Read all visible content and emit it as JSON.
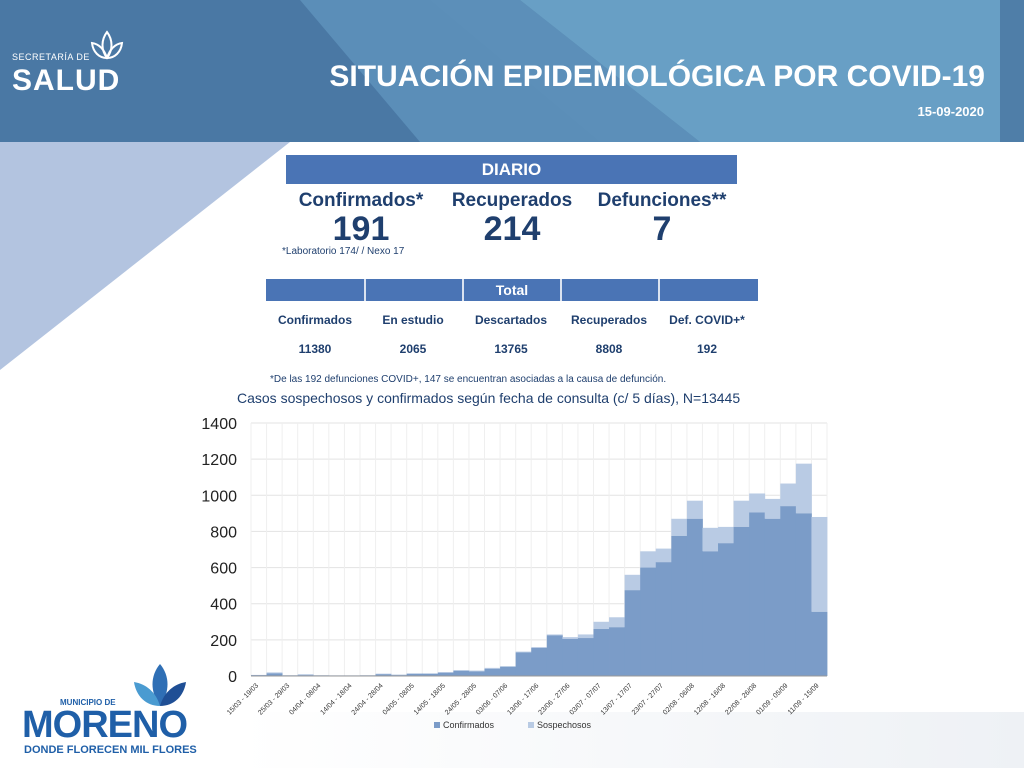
{
  "header": {
    "logo_small": "SECRETARÍA DE",
    "logo_big": "SALUD",
    "title": "SITUACIÓN EPIDEMIOLÓGICA POR COVID-19",
    "date": "15-09-2020"
  },
  "diario": {
    "heading": "DIARIO",
    "items": [
      {
        "label": "Confirmados*",
        "value": "191"
      },
      {
        "label": "Recuperados",
        "value": "214"
      },
      {
        "label": "Defunciones**",
        "value": "7"
      }
    ],
    "note": "*Laboratorio 174/ / Nexo 17"
  },
  "total": {
    "heading": "Total",
    "items": [
      {
        "label": "Confirmados",
        "value": "11380"
      },
      {
        "label": "En estudio",
        "value": "2065"
      },
      {
        "label": "Descartados",
        "value": "13765"
      },
      {
        "label": "Recuperados",
        "value": "8808"
      },
      {
        "label": "Def. COVID+*",
        "value": "192"
      }
    ],
    "note": "*De las 192 defunciones COVID+, 147 se encuentran asociadas a la causa de defunción."
  },
  "colors": {
    "header": "#4f7ea8",
    "accent_bar": "#4a74b5",
    "text_dark": "#1f3f6e",
    "confirmados": "#7b9cc8",
    "sospechosos": "#b9cbe4"
  },
  "chart_data": {
    "type": "area",
    "stacked": true,
    "title": "Casos sospechosos y confirmados según fecha de consulta (c/ 5 días), N=13445",
    "xlabel": "",
    "ylabel": "",
    "ylim": [
      0,
      1400
    ],
    "yticks": [
      0,
      200,
      400,
      600,
      800,
      1000,
      1200,
      1400
    ],
    "grid": true,
    "legend_position": "bottom",
    "categories": [
      "15/03 - 19/03",
      "20/03 - 24/03",
      "25/03 - 29/03",
      "30/03 - 03/04",
      "04/04 - 08/04",
      "09/04 - 13/04",
      "14/04 - 18/04",
      "19/04 - 23/04",
      "24/04 - 28/04",
      "29/04 - 03/05",
      "04/05 - 08/05",
      "09/05 - 13/05",
      "14/05 - 18/05",
      "19/05 - 23/05",
      "24/05 - 28/05",
      "29/05 - 02/06",
      "03/06 - 07/06",
      "08/06 - 12/06",
      "13/06 - 17/06",
      "18/06 - 22/06",
      "23/06 - 27/06",
      "28/06 - 02/07",
      "03/07 - 07/07",
      "08/07 - 12/07",
      "13/07 - 17/07",
      "18/07 - 22/07",
      "23/07 - 27/07",
      "28/07 - 01/08",
      "02/08 - 06/08",
      "07/08 - 11/08",
      "12/08 - 16/08",
      "17/08 - 21/08",
      "22/08 - 26/08",
      "27/08 - 31/08",
      "01/09 - 05/09",
      "06/09 - 10/09",
      "11/09 - 15/09"
    ],
    "tick_labels": [
      "15/03 - 19/03",
      "25/03 - 29/03",
      "04/04 - 08/04",
      "14/04 - 18/04",
      "24/04 - 28/04",
      "04/05 - 08/05",
      "14/05 - 18/05",
      "24/05 - 28/05",
      "03/06 - 07/06",
      "13/06 - 17/06",
      "23/06 - 27/06",
      "03/07 - 07/07",
      "13/07 - 17/07",
      "23/07 - 27/07",
      "02/08 - 06/08",
      "12/08 - 16/08",
      "22/08 - 26/08",
      "01/09 - 05/09",
      "11/09 - 15/09"
    ],
    "series": [
      {
        "name": "Confirmados",
        "values": [
          5,
          15,
          3,
          5,
          3,
          2,
          2,
          3,
          10,
          5,
          12,
          12,
          18,
          28,
          25,
          40,
          50,
          130,
          155,
          225,
          205,
          210,
          260,
          270,
          475,
          600,
          630,
          775,
          870,
          690,
          735,
          825,
          905,
          870,
          940,
          900,
          355
        ]
      },
      {
        "name": "Sospechosos",
        "values": [
          1,
          5,
          2,
          5,
          2,
          2,
          2,
          2,
          3,
          3,
          3,
          3,
          4,
          5,
          5,
          5,
          5,
          5,
          5,
          5,
          10,
          20,
          40,
          55,
          85,
          90,
          75,
          95,
          100,
          130,
          90,
          145,
          105,
          110,
          125,
          275,
          525
        ]
      }
    ]
  }
}
